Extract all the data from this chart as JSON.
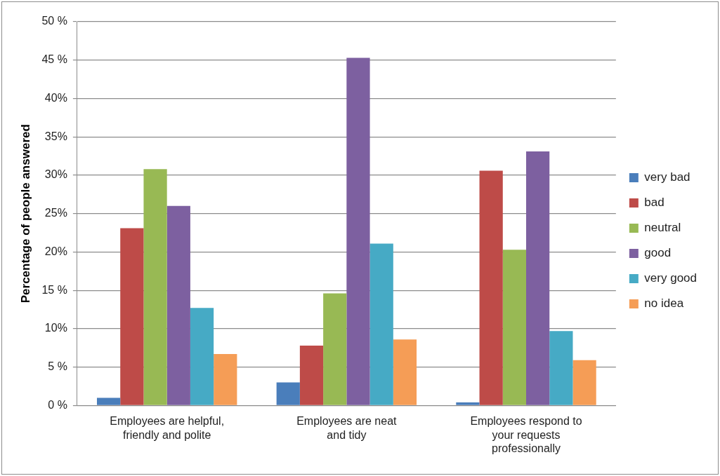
{
  "chart_data": {
    "type": "bar",
    "ylabel": "Percentage of people answered",
    "categories": [
      "Employees are helpful, friendly and polite",
      "Employees are neat and tidy",
      "Employees respond to your requests professionally"
    ],
    "series": [
      {
        "name": "very bad",
        "color": "#4a7ebb",
        "values": [
          1.0,
          3.0,
          0.4
        ]
      },
      {
        "name": "bad",
        "color": "#be4b48",
        "values": [
          23.1,
          7.8,
          30.6
        ]
      },
      {
        "name": "neutral",
        "color": "#98b954",
        "values": [
          30.8,
          14.6,
          20.3
        ]
      },
      {
        "name": "good",
        "color": "#7d60a0",
        "values": [
          26.0,
          45.3,
          33.1
        ]
      },
      {
        "name": "very good",
        "color": "#46aac5",
        "values": [
          12.7,
          21.1,
          9.7
        ]
      },
      {
        "name": "no idea",
        "color": "#f59d56",
        "values": [
          6.7,
          8.6,
          5.9
        ]
      }
    ],
    "ylim": [
      0,
      50
    ],
    "yticks": [
      {
        "value": 0,
        "label": "0 %"
      },
      {
        "value": 5,
        "label": "5 %"
      },
      {
        "value": 10,
        "label": "10%"
      },
      {
        "value": 15,
        "label": "15 %"
      },
      {
        "value": 20,
        "label": "20%"
      },
      {
        "value": 25,
        "label": "25%"
      },
      {
        "value": 30,
        "label": "30%"
      },
      {
        "value": 35,
        "label": "35%"
      },
      {
        "value": 40,
        "label": "40%"
      },
      {
        "value": 45,
        "label": "45 %"
      },
      {
        "value": 50,
        "label": "50 %"
      }
    ],
    "grid": "y",
    "legend": "right"
  }
}
